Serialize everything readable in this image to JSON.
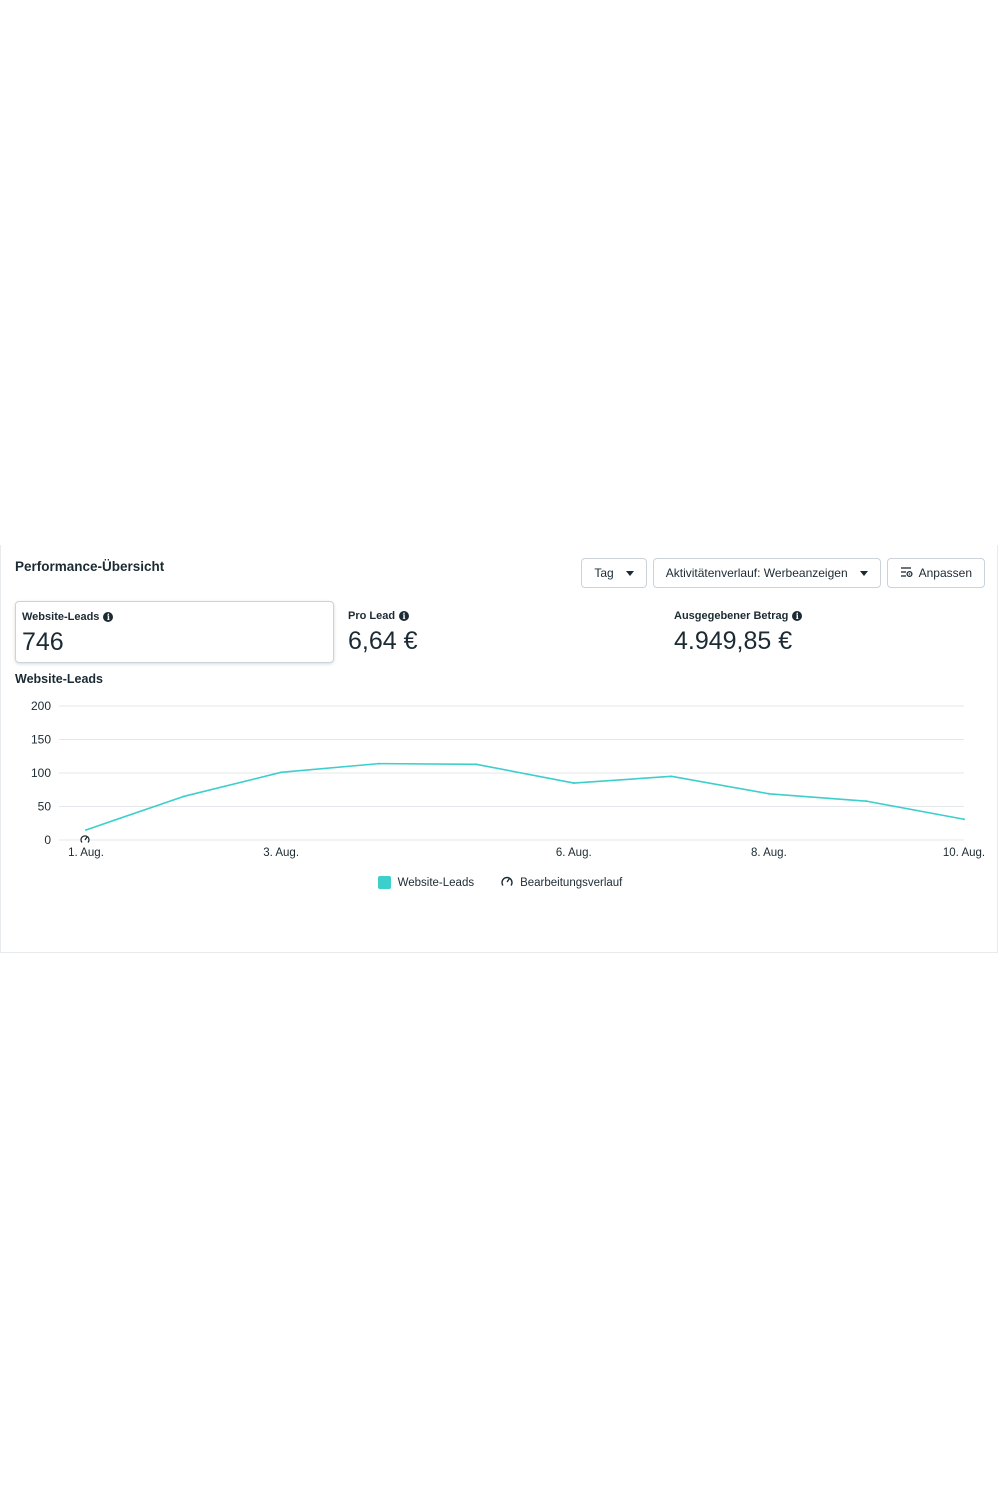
{
  "header": {
    "title": "Performance-Übersicht",
    "buttons": {
      "day": "Tag",
      "activity": "Aktivitätenverlauf: Werbeanzeigen",
      "customize": "Anpassen"
    }
  },
  "metrics": [
    {
      "label": "Website-Leads",
      "value": "746"
    },
    {
      "label": "Pro Lead",
      "value": "6,64 €"
    },
    {
      "label": "Ausgegebener Betrag",
      "value": "4.949,85 €"
    }
  ],
  "legend": {
    "series": "Website-Leads",
    "history": "Bearbeitungsverlauf"
  },
  "colors": {
    "series": "#3ccfcb",
    "grid": "#e4e7eb",
    "text": "#1c2b33"
  },
  "chart_data": {
    "type": "line",
    "title": "Website-Leads",
    "x": [
      "1. Aug.",
      "2. Aug.",
      "3. Aug.",
      "4. Aug.",
      "5. Aug.",
      "6. Aug.",
      "7. Aug.",
      "8. Aug.",
      "9. Aug.",
      "10. Aug."
    ],
    "x_tick_labels": [
      "1. Aug.",
      "3. Aug.",
      "6. Aug.",
      "8. Aug.",
      "10. Aug."
    ],
    "series": [
      {
        "name": "Website-Leads",
        "values": [
          15,
          65,
          101,
          114,
          113,
          85,
          95,
          69,
          58,
          31
        ]
      }
    ],
    "y_ticks": [
      0,
      50,
      100,
      150,
      200
    ],
    "ylim": [
      0,
      200
    ],
    "grid": true,
    "legend_position": "bottom",
    "history_marker_x": "1. Aug."
  }
}
